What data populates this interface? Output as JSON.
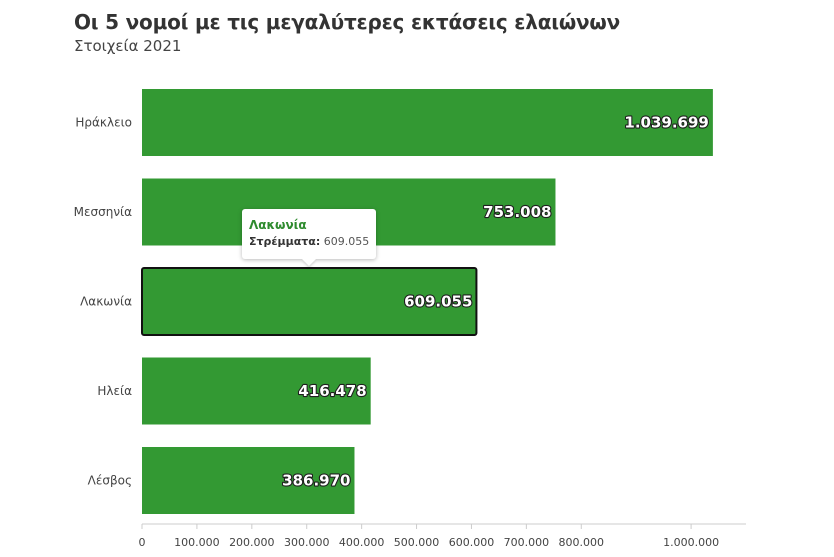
{
  "chart_data": {
    "type": "bar",
    "orientation": "horizontal",
    "title": "Οι 5 νομοί με τις μεγαλύτερες εκτάσεις ελαιώνων",
    "subtitle": "Στοιχεία 2021",
    "categories": [
      "Ηράκλειο",
      "Μεσσηνία",
      "Λακωνία",
      "Ηλεία",
      "Λέσβος"
    ],
    "values": [
      1039699,
      753008,
      609055,
      416478,
      386970
    ],
    "value_labels": [
      "1.039.699",
      "753.008",
      "609.055",
      "416.478",
      "386.970"
    ],
    "x_ticks": [
      0,
      100000,
      200000,
      300000,
      400000,
      500000,
      600000,
      700000,
      800000,
      1000000
    ],
    "x_tick_labels": [
      "0",
      "100.000",
      "200.000",
      "300.000",
      "400.000",
      "500.000",
      "600.000",
      "700.000",
      "800.000",
      "1.000.000"
    ],
    "xlim": [
      0,
      1100000
    ],
    "bar_color": "#339933",
    "highlighted_category": "Λακωνία",
    "grid": false
  },
  "tooltip": {
    "title": "Λακωνία",
    "key": "Στρέμματα:",
    "value": "609.055"
  }
}
